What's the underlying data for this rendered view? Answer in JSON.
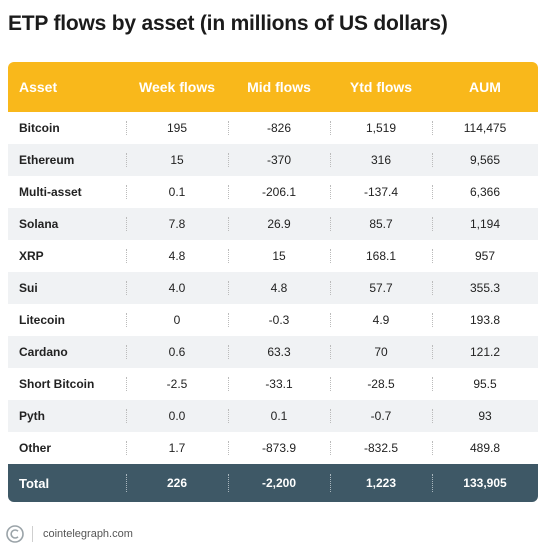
{
  "title": "ETP flows by asset (in millions of US dollars)",
  "source": "cointelegraph.com",
  "colors": {
    "header": "#f9b81b",
    "footer": "#3e5866",
    "stripe": "#f0f2f4"
  },
  "logo_icon": "cointelegraph-logo-icon",
  "chart_data": {
    "type": "table",
    "columns": [
      "Asset",
      "Week flows",
      "Mid flows",
      "Ytd flows",
      "AUM"
    ],
    "rows": [
      [
        "Bitcoin",
        "195",
        "-826",
        "1,519",
        "114,475"
      ],
      [
        "Ethereum",
        "15",
        "-370",
        "316",
        "9,565"
      ],
      [
        "Multi-asset",
        "0.1",
        "-206.1",
        "-137.4",
        "6,366"
      ],
      [
        "Solana",
        "7.8",
        "26.9",
        "85.7",
        "1,194"
      ],
      [
        "XRP",
        "4.8",
        "15",
        "168.1",
        "957"
      ],
      [
        "Sui",
        "4.0",
        "4.8",
        "57.7",
        "355.3"
      ],
      [
        "Litecoin",
        "0",
        "-0.3",
        "4.9",
        "193.8"
      ],
      [
        "Cardano",
        "0.6",
        "63.3",
        "70",
        "121.2"
      ],
      [
        "Short Bitcoin",
        "-2.5",
        "-33.1",
        "-28.5",
        "95.5"
      ],
      [
        "Pyth",
        "0.0",
        "0.1",
        "-0.7",
        "93"
      ],
      [
        "Other",
        "1.7",
        "-873.9",
        "-832.5",
        "489.8"
      ]
    ],
    "total": [
      "Total",
      "226",
      "-2,200",
      "1,223",
      "133,905"
    ]
  }
}
